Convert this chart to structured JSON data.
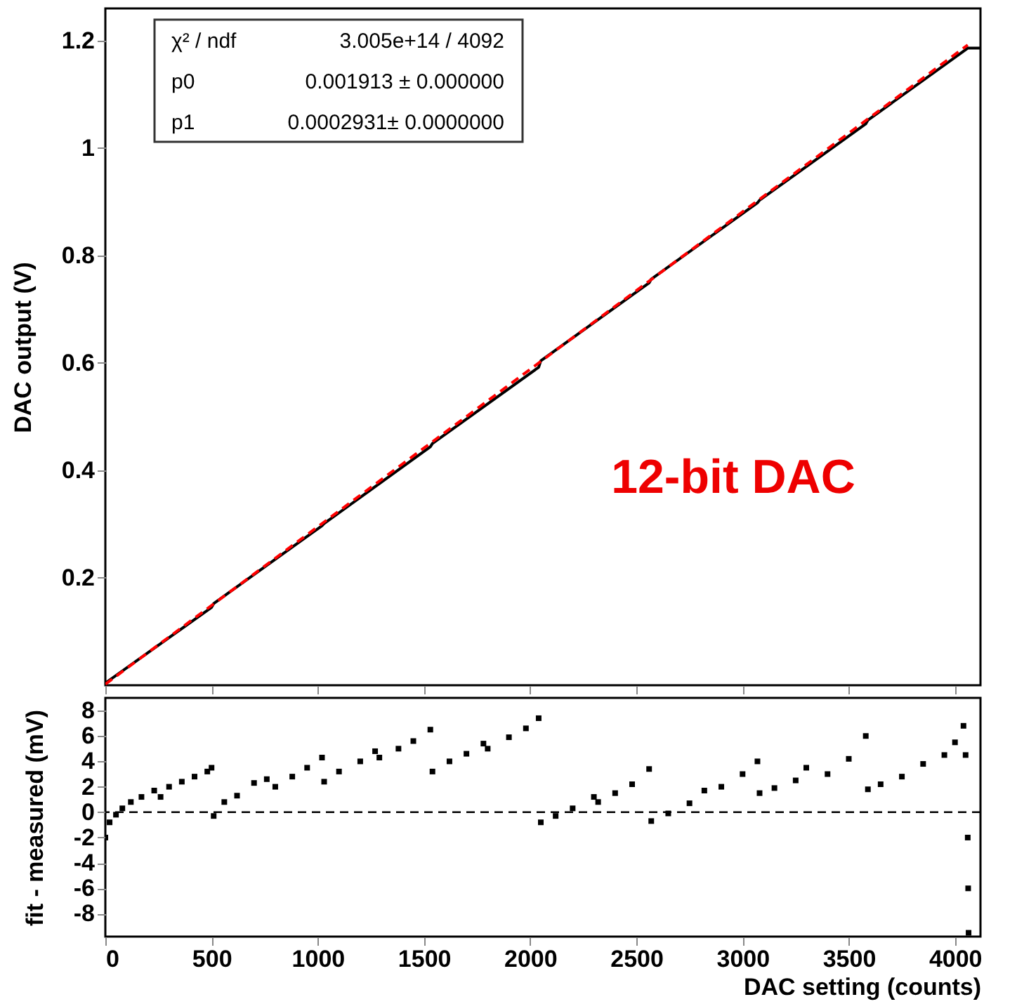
{
  "chart_data": [
    {
      "type": "line",
      "ylabel": "DAC output (V)",
      "xlim": [
        0,
        4120
      ],
      "xticks": [
        0,
        500,
        1000,
        1500,
        2000,
        2500,
        3000,
        3500,
        4000
      ],
      "ylim": [
        0,
        1.26
      ],
      "yticks": [
        0.2,
        0.4,
        0.6,
        0.8,
        1,
        1.2
      ],
      "tick_labels": "y",
      "grid": false,
      "series": [
        {
          "color": "#000000",
          "line_style": "solid",
          "x": [
            0,
            500,
            510,
            1020,
            1030,
            1530,
            1540,
            2040,
            2050,
            2560,
            2570,
            3070,
            3080,
            3580,
            3590,
            4060,
            4120
          ],
          "values": [
            0.004,
            0.145,
            0.152,
            0.297,
            0.301,
            0.444,
            0.45,
            0.592,
            0.604,
            0.749,
            0.756,
            0.898,
            0.903,
            1.045,
            1.052,
            1.186,
            1.186
          ]
        },
        {
          "color": "#ff0000",
          "line_style": "dashed",
          "x": [
            0,
            4060
          ],
          "values": [
            0.002,
            1.192
          ]
        }
      ],
      "annotations": [
        "χ² / ndf",
        "3.005e+14 / 4092",
        "p0",
        "0.001913 ± 0.000000",
        "p1",
        "0.0002931± 0.0000000",
        "12-bit DAC"
      ]
    },
    {
      "type": "scatter",
      "xlabel": "DAC setting (counts)",
      "ylabel": "fit - measured (mV)",
      "xlim": [
        0,
        4120
      ],
      "xticks": [
        0,
        500,
        1000,
        1500,
        2000,
        2500,
        3000,
        3500,
        4000
      ],
      "ylim": [
        -9.8,
        9
      ],
      "yticks": [
        -8,
        -6,
        -4,
        -2,
        0,
        2,
        4,
        6,
        8
      ],
      "grid": false,
      "marker": "square",
      "ref_lines": [
        {
          "axis": "y",
          "value": 0,
          "color": "#000000",
          "line_style": "dashed"
        }
      ],
      "series": [
        {
          "color": "#000000",
          "x": [
            0,
            20,
            50,
            80,
            120,
            170,
            230,
            260,
            300,
            360,
            420,
            480,
            500,
            510,
            560,
            620,
            700,
            760,
            800,
            880,
            950,
            1020,
            1030,
            1100,
            1200,
            1270,
            1290,
            1380,
            1450,
            1530,
            1540,
            1620,
            1700,
            1780,
            1800,
            1900,
            1980,
            2040,
            2050,
            2120,
            2200,
            2300,
            2320,
            2400,
            2480,
            2560,
            2570,
            2650,
            2750,
            2820,
            2900,
            3000,
            3070,
            3080,
            3150,
            3250,
            3300,
            3400,
            3500,
            3580,
            3590,
            3650,
            3750,
            3850,
            3950,
            4000,
            4040,
            4050,
            4060,
            4062,
            4064
          ],
          "values": [
            -2,
            -0.8,
            -0.2,
            0.3,
            0.8,
            1.2,
            1.7,
            1.2,
            2,
            2.4,
            2.8,
            3.2,
            3.5,
            -0.3,
            0.8,
            1.3,
            2.3,
            2.6,
            2,
            2.8,
            3.5,
            4.3,
            2.4,
            3.2,
            4.0,
            4.8,
            4.3,
            5.0,
            5.6,
            6.5,
            3.2,
            4.0,
            4.6,
            5.4,
            5.0,
            5.9,
            6.6,
            7.4,
            -0.8,
            -0.3,
            0.3,
            1.2,
            0.8,
            1.5,
            2.2,
            3.4,
            -0.7,
            -0.1,
            0.7,
            1.7,
            2.0,
            3.0,
            4.0,
            1.5,
            1.9,
            2.5,
            3.5,
            3.0,
            4.2,
            6.0,
            1.8,
            2.2,
            2.8,
            3.8,
            4.5,
            5.5,
            6.8,
            4.5,
            -2,
            -6,
            -9.5
          ]
        }
      ]
    }
  ]
}
